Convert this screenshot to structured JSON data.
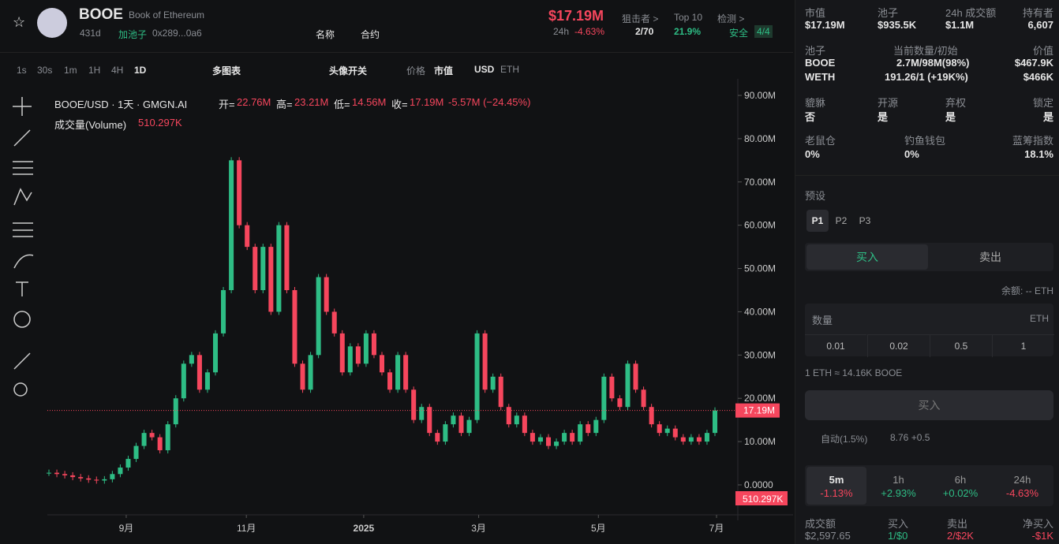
{
  "header": {
    "symbol": "BOOE",
    "name": "Book of Ethereum",
    "age": "431d",
    "pool": "加池子",
    "address": "0x289...0a6",
    "link_name": "名称",
    "link_contract": "合约",
    "price": "$17.19M",
    "change_label": "24h",
    "change": "-4.63%",
    "sniper_label": "狙击者 >",
    "sniper": "2/70",
    "top10_label": "Top 10",
    "top10": "21.9%",
    "check_label": "检测 >",
    "check": "安全",
    "check_count": "4/4"
  },
  "toolbar": {
    "intervals": [
      "1s",
      "30s",
      "1m",
      "1H",
      "4H",
      "1D"
    ],
    "multi": "多图表",
    "indicator": "头像开关",
    "price": "价格",
    "mcap": "市值",
    "usd": "USD",
    "eth": "ETH"
  },
  "legend": {
    "pair": "BOOE/USD · 1天 · GMGN.AI",
    "open_label": "开=",
    "open": "22.76M",
    "high_label": "高=",
    "high": "23.21M",
    "low_label": "低=",
    "low": "14.56M",
    "close_label": "收=",
    "close": "17.19M",
    "change": "-5.57M (−24.45%)",
    "volume_label": "成交量(Volume)",
    "volume": "510.297K"
  },
  "chart_data": {
    "type": "candlestick",
    "ylim": [
      0,
      90
    ],
    "yticks": [
      {
        "value": 0,
        "label": "0.0000"
      },
      {
        "value": 10,
        "label": "10.00M"
      },
      {
        "value": 20,
        "label": "20.00M"
      },
      {
        "value": 30,
        "label": "30.00M"
      },
      {
        "value": 40,
        "label": "40.00M"
      },
      {
        "value": 50,
        "label": "50.00M"
      },
      {
        "value": 60,
        "label": "60.00M"
      },
      {
        "value": 70,
        "label": "70.00M"
      },
      {
        "value": 80,
        "label": "80.00M"
      },
      {
        "value": 90,
        "label": "90.00M"
      }
    ],
    "xlim": [
      0,
      84
    ],
    "xticks": [
      {
        "value": 9.75,
        "label": "9月"
      },
      {
        "value": 24.9,
        "label": "11月"
      },
      {
        "value": 39.7,
        "label": "2025"
      },
      {
        "value": 54.2,
        "label": "3月"
      },
      {
        "value": 69.3,
        "label": "5月"
      },
      {
        "value": 84.2,
        "label": "7月"
      }
    ],
    "values": [
      2.8,
      2.5,
      2.2,
      1.8,
      1.5,
      1.2,
      1.0,
      1.3,
      2.5,
      4,
      6,
      9,
      12,
      11,
      8,
      14,
      20,
      28,
      30,
      22,
      26,
      35,
      45,
      75,
      60,
      55,
      45,
      55,
      40,
      60,
      45,
      28,
      22,
      30,
      48,
      40,
      35,
      26,
      32,
      28,
      35,
      30,
      26,
      22,
      30,
      22,
      15,
      18,
      12,
      10,
      14,
      16,
      12,
      15,
      35,
      22,
      25,
      18,
      14,
      16,
      12,
      10,
      11,
      9,
      10,
      12,
      10,
      14,
      12,
      15,
      25,
      20,
      18,
      28,
      22,
      18,
      14,
      12,
      13,
      11,
      10,
      11,
      10,
      12,
      17.19
    ],
    "up_color": "#2ebd85",
    "down_color": "#f6465d",
    "price_tag": "17.19M",
    "volume_tag": "510.297K"
  },
  "panel": {
    "stats": [
      {
        "label": "市值",
        "value": "$17.19M"
      },
      {
        "label": "池子",
        "value": "$935.5K"
      },
      {
        "label": "24h 成交额",
        "value": "$1.1M"
      },
      {
        "label": "持有者",
        "value": "6,607"
      }
    ],
    "pool_label": "池子",
    "pool_tokens": [
      "BOOE",
      "WETH"
    ],
    "amount_label": "当前数量/初始",
    "amounts": [
      "2.7M/98M(98%)",
      "191.26/1 (+19K%)"
    ],
    "worth_label": "价值",
    "worths": [
      "$467.9K",
      "$466K"
    ],
    "flags": [
      {
        "label": "貔貅",
        "value": "否"
      },
      {
        "label": "开源",
        "value": "是"
      },
      {
        "label": "弃权",
        "value": "是"
      },
      {
        "label": "锁定",
        "value": "是"
      }
    ],
    "holders": [
      {
        "label": "老鼠仓",
        "value": "0%"
      },
      {
        "label": "钓鱼钱包",
        "value": "0%"
      },
      {
        "label": "蓝筹指数",
        "value": "18.1%"
      }
    ],
    "preset": "预设",
    "presets": [
      "P1",
      "P2",
      "P3"
    ],
    "buy": "买入",
    "sell": "卖出",
    "balance": "余额: -- ETH",
    "qty": "数量",
    "qty_unit": "ETH",
    "amounts_quick": [
      "0.01",
      "0.02",
      "0.5",
      "1"
    ],
    "rate": "1 ETH ≈ 14.16K BOOE",
    "buy_button": "买入",
    "auto": "自动(1.5%)",
    "gas": "8.76 +0.5",
    "frames": [
      {
        "label": "5m",
        "value": "-1.13%"
      },
      {
        "label": "1h",
        "value": "+2.93%"
      },
      {
        "label": "6h",
        "value": "+0.02%"
      },
      {
        "label": "24h",
        "value": "-4.63%"
      }
    ],
    "footer": [
      {
        "label": "成交额",
        "value": "$2,597.65"
      },
      {
        "label": "买入",
        "value": "1/$0"
      },
      {
        "label": "卖出",
        "value": "2/$2K"
      },
      {
        "label": "净买入",
        "value": "-$1K"
      }
    ]
  }
}
